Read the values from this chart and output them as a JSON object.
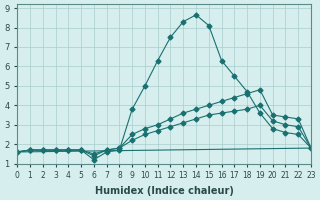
{
  "xlabel": "Humidex (Indice chaleur)",
  "ylabel": "",
  "background_color": "#d6eeee",
  "grid_color": "#aacccc",
  "line_color": "#1a7070",
  "xlim": [
    0,
    23
  ],
  "ylim": [
    1,
    9.2
  ],
  "xticks": [
    0,
    1,
    2,
    3,
    4,
    5,
    6,
    7,
    8,
    9,
    10,
    11,
    12,
    13,
    14,
    15,
    16,
    17,
    18,
    19,
    20,
    21,
    22,
    23
  ],
  "yticks": [
    1,
    2,
    3,
    4,
    5,
    6,
    7,
    8,
    9
  ],
  "lines": [
    {
      "x": [
        0,
        1,
        2,
        3,
        4,
        5,
        6,
        7,
        8,
        9,
        10,
        11,
        12,
        13,
        14,
        15,
        16,
        17,
        18,
        19,
        20,
        21,
        22,
        23
      ],
      "y": [
        1.6,
        1.7,
        1.7,
        1.7,
        1.7,
        1.7,
        1.2,
        1.6,
        1.7,
        3.8,
        5.0,
        6.3,
        7.5,
        8.3,
        8.65,
        8.1,
        6.3,
        5.5,
        4.7,
        3.6,
        2.8,
        2.6,
        2.5,
        1.8
      ],
      "marker": true
    },
    {
      "x": [
        0,
        1,
        2,
        3,
        4,
        5,
        6,
        7,
        8,
        9,
        10,
        11,
        12,
        13,
        14,
        15,
        16,
        17,
        18,
        19,
        20,
        21,
        22,
        23
      ],
      "y": [
        1.6,
        1.7,
        1.7,
        1.7,
        1.7,
        1.7,
        1.4,
        1.7,
        1.8,
        2.5,
        2.8,
        3.0,
        3.3,
        3.6,
        3.8,
        4.0,
        4.2,
        4.4,
        4.6,
        4.8,
        3.5,
        3.4,
        3.3,
        1.8
      ],
      "marker": true
    },
    {
      "x": [
        0,
        1,
        2,
        3,
        4,
        5,
        6,
        7,
        8,
        9,
        10,
        11,
        12,
        13,
        14,
        15,
        16,
        17,
        18,
        19,
        20,
        21,
        22,
        23
      ],
      "y": [
        1.6,
        1.7,
        1.7,
        1.7,
        1.7,
        1.7,
        1.5,
        1.7,
        1.8,
        2.2,
        2.5,
        2.7,
        2.9,
        3.1,
        3.3,
        3.5,
        3.6,
        3.7,
        3.8,
        4.0,
        3.2,
        3.0,
        2.9,
        1.8
      ],
      "marker": true
    },
    {
      "x": [
        0,
        23
      ],
      "y": [
        1.6,
        1.8
      ],
      "marker": false
    }
  ]
}
